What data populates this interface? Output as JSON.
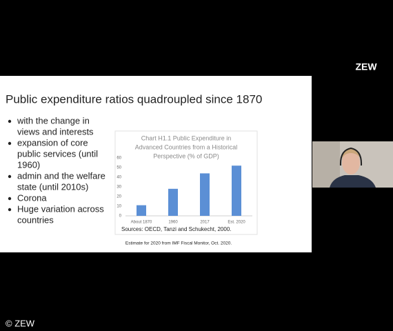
{
  "brand": "ZEW",
  "copyright": "© ZEW",
  "slide": {
    "title": "Public expenditure ratios quadroupled since 1870",
    "bullets": [
      [
        "with the change in",
        "views and interests"
      ],
      [
        "expansion of core",
        "public services (until",
        "1960)"
      ],
      [
        "admin and the welfare",
        "state (until 2010s)"
      ],
      [
        "Corona"
      ],
      [
        "Huge variation across",
        "countries"
      ]
    ],
    "footnote": "Estimate for 2020 from IMF Fiscal Monitor, Oct. 2020."
  },
  "chart_data": {
    "type": "bar",
    "title": [
      "Chart H1.1 Public Expenditure in",
      "Advanced Countries from a Historical",
      "Perspective (% of GDP)"
    ],
    "categories": [
      "About 1870",
      "1960",
      "2017",
      "Est. 2020"
    ],
    "values": [
      11,
      28,
      44,
      52
    ],
    "color": "#5b8fd5",
    "ylim": [
      0,
      60
    ],
    "yticks": [
      0,
      10,
      20,
      30,
      40,
      50,
      60
    ],
    "source": "Sources: OECD, Tanzi and Schukecht, 2000."
  }
}
